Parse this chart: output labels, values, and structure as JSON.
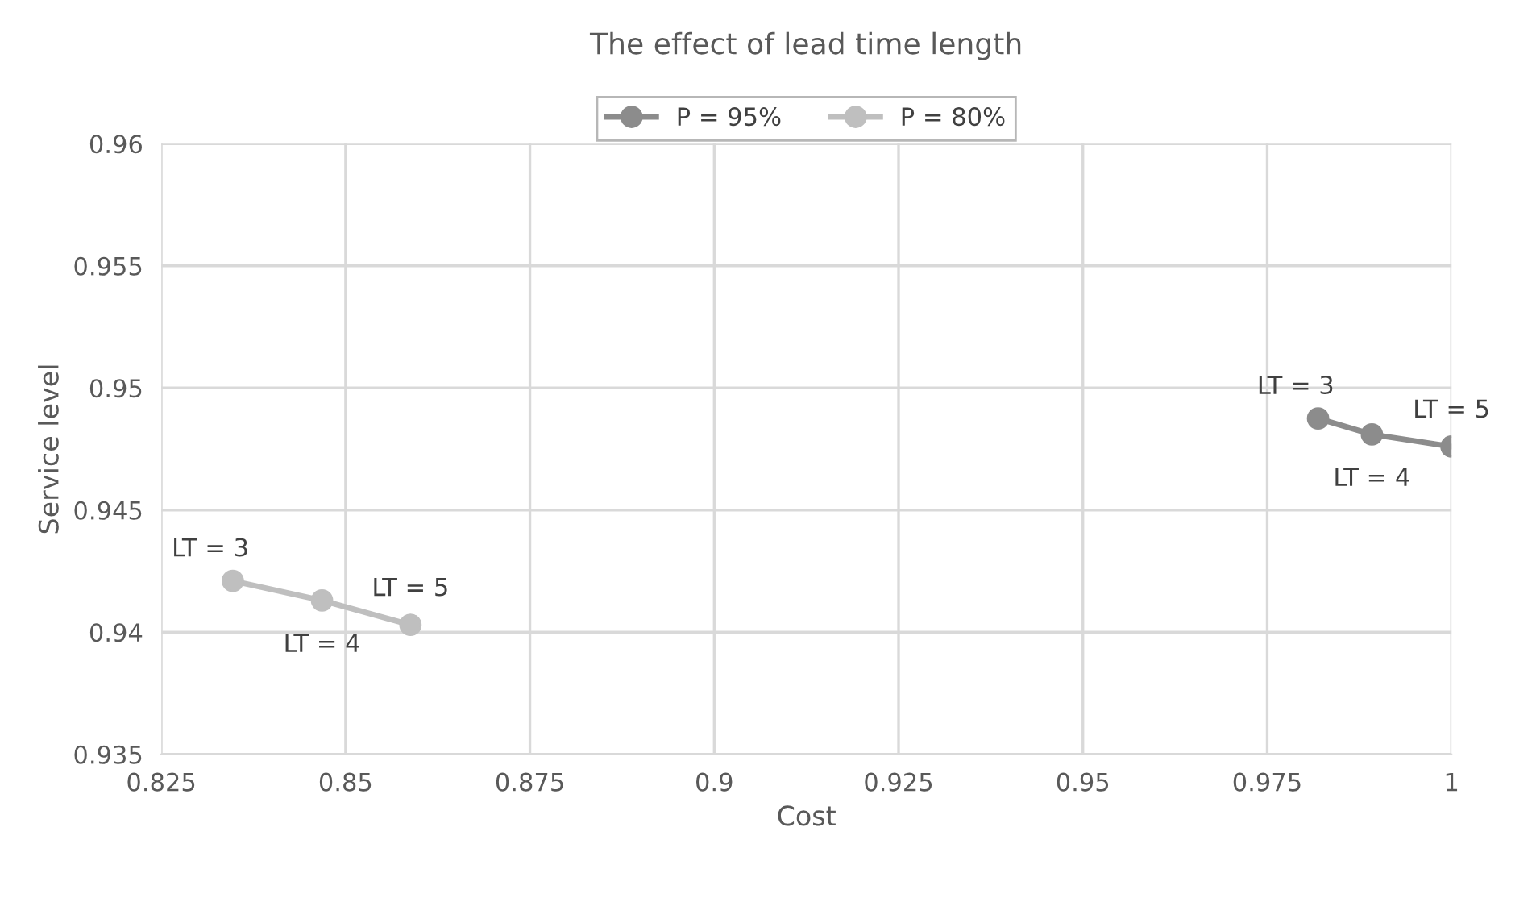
{
  "chart_data": {
    "type": "line",
    "title": "The effect of lead time length",
    "xlabel": "Cost",
    "ylabel": "Service level",
    "series": [
      {
        "name": "P = 95%",
        "color": "#8c8c8c",
        "x": [
          0.9819,
          0.9892,
          1.0
        ],
        "values": [
          0.94875,
          0.9481,
          0.9476
        ]
      },
      {
        "name": "P = 80%",
        "color": "#bfbfbf",
        "x": [
          0.8347,
          0.8468,
          0.8588
        ],
        "values": [
          0.9421,
          0.9413,
          0.9403
        ]
      }
    ],
    "annotations": [
      {
        "text": "LT = 3",
        "x": 0.9819,
        "y": 0.94875
      },
      {
        "text": "LT = 4",
        "x": 0.9892,
        "y": 0.9481
      },
      {
        "text": "LT = 5",
        "x": 1.0,
        "y": 0.9476
      },
      {
        "text": "LT = 3",
        "x": 0.8347,
        "y": 0.9421
      },
      {
        "text": "LT = 4",
        "x": 0.8468,
        "y": 0.9413
      },
      {
        "text": "LT = 5",
        "x": 0.8588,
        "y": 0.9403
      }
    ],
    "xlim": [
      0.825,
      1
    ],
    "xticks": [
      0.825,
      0.85,
      0.875,
      0.9,
      0.925,
      0.95,
      0.975,
      1
    ],
    "ylim": [
      0.935,
      0.96
    ],
    "yticks": [
      0.935,
      0.94,
      0.945,
      0.95,
      0.955,
      0.96
    ],
    "grid": true,
    "legend": "top",
    "marker": "circle",
    "line_style": "solid"
  }
}
